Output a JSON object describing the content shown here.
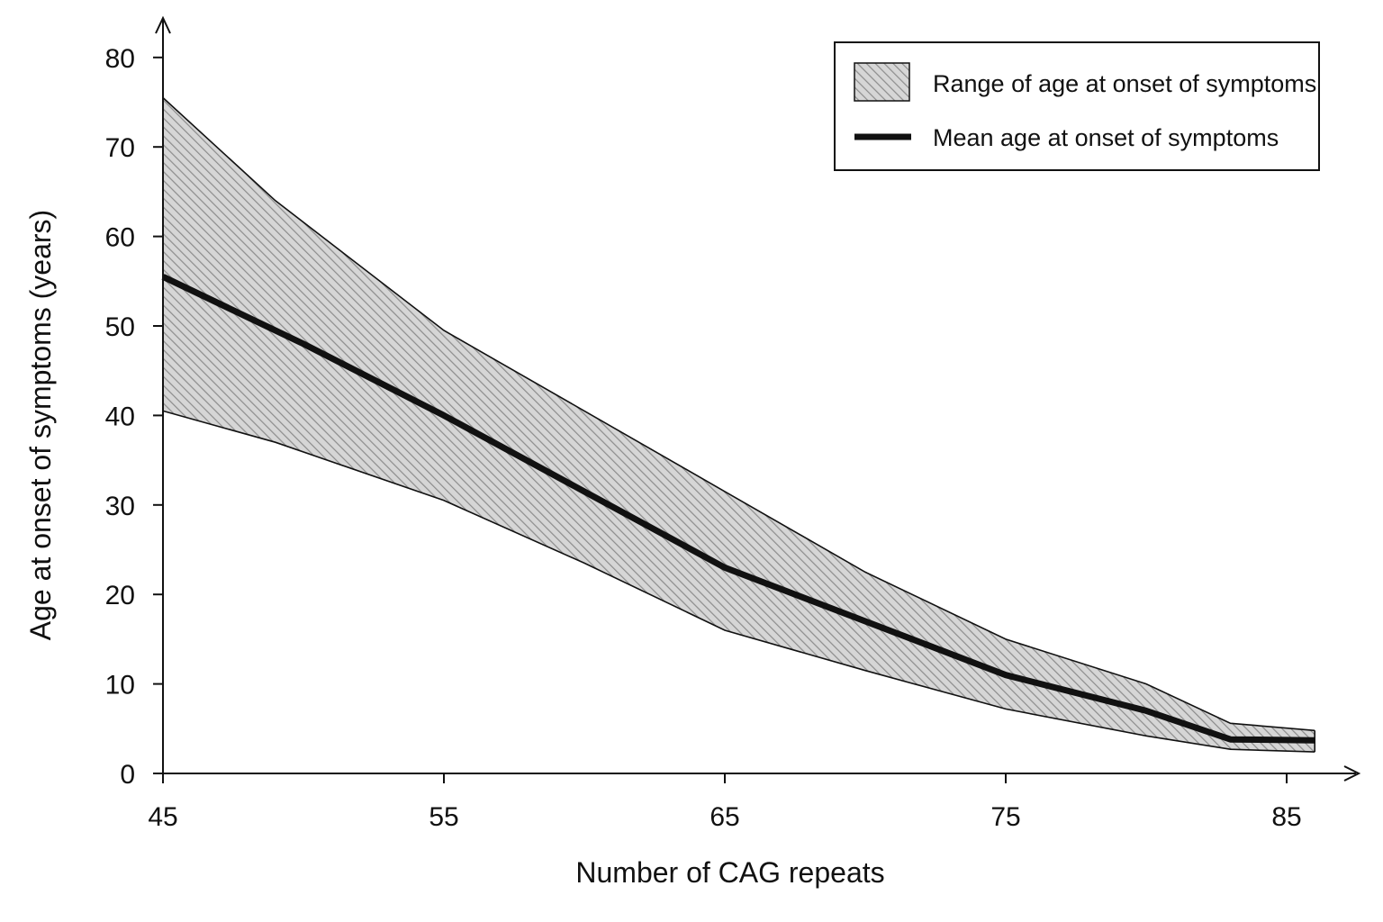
{
  "chart_data": {
    "type": "area",
    "xlabel": "Number of CAG repeats",
    "ylabel": "Age at onset of symptoms (years)",
    "xlim": [
      45,
      86
    ],
    "ylim": [
      0,
      80
    ],
    "xticks": [
      45,
      55,
      65,
      75,
      85
    ],
    "yticks": [
      0,
      10,
      20,
      30,
      40,
      50,
      60,
      70,
      80
    ],
    "grid": false,
    "legend_position": "top-right",
    "colors": {
      "mean_line": "#111111",
      "band_fill": "#d6d6d6",
      "hatch": "#8c8c8c",
      "band_edge": "#111111",
      "axis": "#111111"
    },
    "series": [
      {
        "name": "Range of age at onset of symptoms",
        "kind": "range",
        "x": [
          45,
          49,
          55,
          60,
          65,
          70,
          75,
          80,
          83,
          86
        ],
        "lower": [
          40.5,
          37,
          30.5,
          23.5,
          16,
          11.5,
          7.2,
          4.2,
          2.7,
          2.4
        ],
        "upper": [
          75.5,
          64,
          49.5,
          40.5,
          31.5,
          22.5,
          15,
          10,
          5.6,
          4.8
        ]
      },
      {
        "name": "Mean age at onset of symptoms",
        "kind": "line",
        "x": [
          45,
          50,
          55,
          60,
          65,
          70,
          75,
          80,
          83,
          86
        ],
        "y": [
          55.5,
          48,
          40,
          31.5,
          23,
          17,
          11,
          7,
          3.8,
          3.7
        ]
      }
    ]
  }
}
